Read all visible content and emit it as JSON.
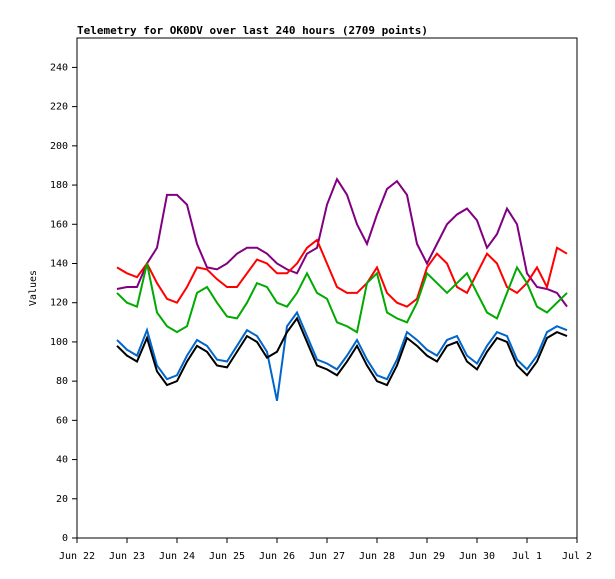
{
  "chart_data": {
    "type": "line",
    "title": "Telemetry for OK0DV over last 240 hours (2709 points)",
    "y_label": "Values",
    "xlim": [
      0,
      10
    ],
    "xticks": [
      {
        "value": 0,
        "label": "Jun 22"
      },
      {
        "value": 1,
        "label": "Jun 23"
      },
      {
        "value": 2,
        "label": "Jun 24"
      },
      {
        "value": 3,
        "label": "Jun 25"
      },
      {
        "value": 4,
        "label": "Jun 26"
      },
      {
        "value": 5,
        "label": "Jun 27"
      },
      {
        "value": 6,
        "label": "Jun 28"
      },
      {
        "value": 7,
        "label": "Jun 29"
      },
      {
        "value": 8,
        "label": "Jun 30"
      },
      {
        "value": 9,
        "label": "Jul 1"
      },
      {
        "value": 10,
        "label": "Jul 2"
      }
    ],
    "ylim": [
      0,
      255
    ],
    "yticks": [
      0,
      20,
      40,
      60,
      80,
      100,
      120,
      140,
      160,
      180,
      200,
      220,
      240
    ],
    "grid": false,
    "x": [
      0.8,
      1,
      1.2,
      1.4,
      1.6,
      1.8,
      2,
      2.2,
      2.4,
      2.6,
      2.8,
      3,
      3.2,
      3.4,
      3.6,
      3.8,
      4,
      4.2,
      4.4,
      4.6,
      4.8,
      5,
      5.2,
      5.4,
      5.6,
      5.8,
      6,
      6.2,
      6.4,
      6.6,
      6.8,
      7,
      7.2,
      7.4,
      7.6,
      7.8,
      8,
      8.2,
      8.4,
      8.6,
      8.8,
      9,
      9.2,
      9.4,
      9.6,
      9.8
    ],
    "series": [
      {
        "color": "#800080",
        "values": [
          127,
          128,
          128,
          140,
          148,
          175,
          175,
          170,
          150,
          138,
          137,
          140,
          145,
          148,
          148,
          145,
          140,
          137,
          135,
          145,
          148,
          170,
          183,
          175,
          160,
          150,
          165,
          178,
          182,
          175,
          150,
          140,
          150,
          160,
          165,
          168,
          162,
          148,
          155,
          168,
          160,
          135,
          128,
          127,
          125,
          118
        ]
      },
      {
        "color": "#ff0000",
        "values": [
          138,
          135,
          133,
          140,
          130,
          122,
          120,
          128,
          138,
          137,
          132,
          128,
          128,
          135,
          142,
          140,
          135,
          135,
          140,
          148,
          152,
          140,
          128,
          125,
          125,
          130,
          138,
          125,
          120,
          118,
          122,
          138,
          145,
          140,
          128,
          125,
          135,
          145,
          140,
          128,
          125,
          130,
          138,
          128,
          148,
          145
        ]
      },
      {
        "color": "#00aa00",
        "values": [
          125,
          120,
          118,
          140,
          115,
          108,
          105,
          108,
          125,
          128,
          120,
          113,
          112,
          120,
          130,
          128,
          120,
          118,
          125,
          135,
          125,
          122,
          110,
          108,
          105,
          130,
          135,
          115,
          112,
          110,
          120,
          135,
          130,
          125,
          130,
          135,
          125,
          115,
          112,
          125,
          138,
          130,
          118,
          115,
          120,
          125
        ]
      },
      {
        "color": "#0066cc",
        "values": [
          101,
          96,
          93,
          106,
          88,
          81,
          83,
          93,
          101,
          98,
          91,
          90,
          98,
          106,
          103,
          95,
          70,
          108,
          115,
          103,
          91,
          89,
          86,
          93,
          101,
          91,
          83,
          81,
          91,
          105,
          101,
          96,
          93,
          101,
          103,
          93,
          89,
          98,
          105,
          103,
          91,
          86,
          93,
          105,
          108,
          106
        ]
      },
      {
        "color": "#000000",
        "values": [
          98,
          93,
          90,
          102,
          85,
          78,
          80,
          90,
          98,
          95,
          88,
          87,
          95,
          103,
          100,
          92,
          95,
          105,
          112,
          100,
          88,
          86,
          83,
          90,
          98,
          88,
          80,
          78,
          88,
          102,
          98,
          93,
          90,
          98,
          100,
          90,
          86,
          95,
          102,
          100,
          88,
          83,
          90,
          102,
          105,
          103
        ]
      }
    ]
  }
}
